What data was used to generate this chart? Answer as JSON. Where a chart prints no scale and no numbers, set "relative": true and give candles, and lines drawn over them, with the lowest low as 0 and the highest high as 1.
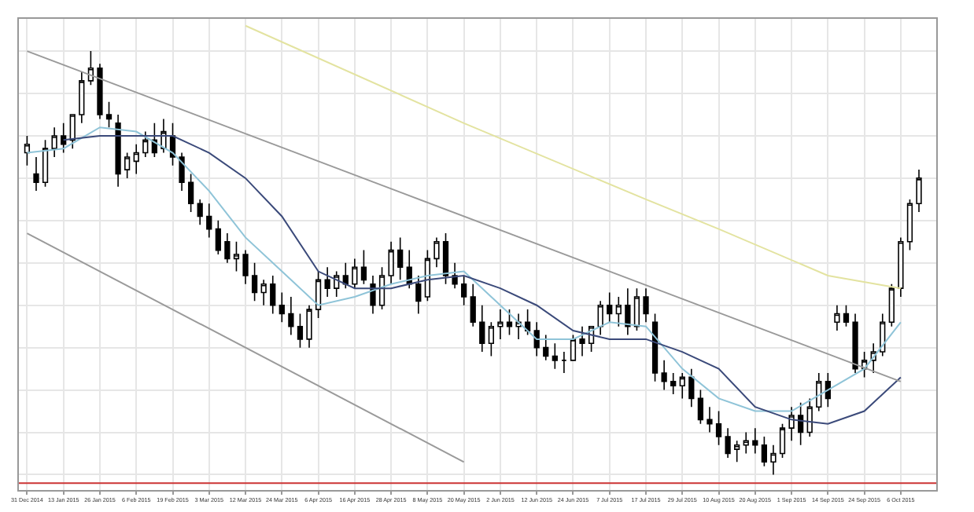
{
  "chart_data": {
    "type": "candlestick",
    "relative": true,
    "color": "#000000",
    "grid": true,
    "tick_labels": "x",
    "categories": [
      "31 Dec 2014",
      null,
      null,
      null,
      "13 Jan 2015",
      null,
      null,
      null,
      "26 Jan 2015",
      null,
      null,
      null,
      "6 Feb 2015",
      null,
      null,
      null,
      "19 Feb 2015",
      null,
      null,
      null,
      "3 Mar 2015",
      null,
      null,
      null,
      "12 Mar 2015",
      null,
      null,
      null,
      "24 Mar 2015",
      null,
      null,
      null,
      "6 Apr 2015",
      null,
      null,
      null,
      "16 Apr 2015",
      null,
      null,
      null,
      "28 Apr 2015",
      null,
      null,
      null,
      "8 May 2015",
      null,
      null,
      null,
      "20 May 2015",
      null,
      null,
      null,
      "2 Jun 2015",
      null,
      null,
      null,
      "12 Jun 2015",
      null,
      null,
      null,
      "24 Jun 2015",
      null,
      null,
      null,
      "7 Jul 2015",
      null,
      null,
      null,
      "17 Jul 2015",
      null,
      null,
      null,
      "29 Jul 2015",
      null,
      null,
      null,
      "10 Aug 2015",
      null,
      null,
      null,
      "20 Aug 2015",
      null,
      null,
      null,
      "1 Sep 2015",
      null,
      null,
      null,
      "14 Sep 2015",
      null,
      null,
      null,
      "24 Sep 2015",
      null,
      null,
      null,
      "6 Oct 2015",
      null,
      null
    ],
    "ohlc": [
      [
        0.76,
        0.8,
        0.73,
        0.78
      ],
      [
        0.71,
        0.75,
        0.67,
        0.69
      ],
      [
        0.69,
        0.79,
        0.68,
        0.77
      ],
      [
        0.77,
        0.82,
        0.75,
        0.8
      ],
      [
        0.8,
        0.83,
        0.76,
        0.78
      ],
      [
        0.79,
        0.85,
        0.77,
        0.85
      ],
      [
        0.85,
        0.95,
        0.83,
        0.93
      ],
      [
        0.93,
        1.0,
        0.92,
        0.96
      ],
      [
        0.96,
        0.97,
        0.84,
        0.85
      ],
      [
        0.85,
        0.88,
        0.82,
        0.84
      ],
      [
        0.83,
        0.85,
        0.68,
        0.71
      ],
      [
        0.72,
        0.76,
        0.7,
        0.75
      ],
      [
        0.74,
        0.78,
        0.71,
        0.76
      ],
      [
        0.76,
        0.81,
        0.75,
        0.79
      ],
      [
        0.79,
        0.83,
        0.75,
        0.76
      ],
      [
        0.77,
        0.84,
        0.76,
        0.81
      ],
      [
        0.8,
        0.83,
        0.73,
        0.75
      ],
      [
        0.75,
        0.76,
        0.67,
        0.69
      ],
      [
        0.69,
        0.71,
        0.62,
        0.64
      ],
      [
        0.64,
        0.65,
        0.59,
        0.61
      ],
      [
        0.61,
        0.64,
        0.56,
        0.58
      ],
      [
        0.58,
        0.6,
        0.52,
        0.53
      ],
      [
        0.55,
        0.57,
        0.5,
        0.51
      ],
      [
        0.51,
        0.55,
        0.48,
        0.52
      ],
      [
        0.52,
        0.53,
        0.45,
        0.47
      ],
      [
        0.47,
        0.5,
        0.41,
        0.43
      ],
      [
        0.43,
        0.46,
        0.4,
        0.45
      ],
      [
        0.45,
        0.47,
        0.38,
        0.4
      ],
      [
        0.4,
        0.43,
        0.36,
        0.38
      ],
      [
        0.38,
        0.42,
        0.33,
        0.35
      ],
      [
        0.35,
        0.38,
        0.3,
        0.32
      ],
      [
        0.32,
        0.4,
        0.3,
        0.39
      ],
      [
        0.39,
        0.48,
        0.37,
        0.46
      ],
      [
        0.46,
        0.49,
        0.42,
        0.44
      ],
      [
        0.44,
        0.48,
        0.42,
        0.47
      ],
      [
        0.47,
        0.5,
        0.44,
        0.45
      ],
      [
        0.45,
        0.51,
        0.44,
        0.49
      ],
      [
        0.49,
        0.53,
        0.45,
        0.46
      ],
      [
        0.45,
        0.47,
        0.38,
        0.4
      ],
      [
        0.4,
        0.49,
        0.39,
        0.47
      ],
      [
        0.47,
        0.55,
        0.45,
        0.53
      ],
      [
        0.53,
        0.56,
        0.46,
        0.49
      ],
      [
        0.49,
        0.53,
        0.44,
        0.45
      ],
      [
        0.45,
        0.47,
        0.38,
        0.41
      ],
      [
        0.42,
        0.53,
        0.41,
        0.51
      ],
      [
        0.51,
        0.56,
        0.49,
        0.55
      ],
      [
        0.55,
        0.57,
        0.45,
        0.47
      ],
      [
        0.47,
        0.5,
        0.44,
        0.45
      ],
      [
        0.45,
        0.47,
        0.4,
        0.42
      ],
      [
        0.42,
        0.45,
        0.35,
        0.36
      ],
      [
        0.36,
        0.4,
        0.29,
        0.31
      ],
      [
        0.31,
        0.36,
        0.28,
        0.35
      ],
      [
        0.35,
        0.39,
        0.32,
        0.36
      ],
      [
        0.36,
        0.39,
        0.33,
        0.35
      ],
      [
        0.35,
        0.38,
        0.32,
        0.36
      ],
      [
        0.36,
        0.39,
        0.33,
        0.34
      ],
      [
        0.34,
        0.36,
        0.28,
        0.3
      ],
      [
        0.3,
        0.33,
        0.27,
        0.28
      ],
      [
        0.28,
        0.31,
        0.25,
        0.27
      ],
      [
        0.27,
        0.29,
        0.24,
        0.27
      ],
      [
        0.27,
        0.33,
        0.27,
        0.32
      ],
      [
        0.32,
        0.35,
        0.28,
        0.31
      ],
      [
        0.31,
        0.35,
        0.29,
        0.35
      ],
      [
        0.35,
        0.41,
        0.33,
        0.4
      ],
      [
        0.4,
        0.43,
        0.36,
        0.38
      ],
      [
        0.38,
        0.42,
        0.35,
        0.4
      ],
      [
        0.4,
        0.44,
        0.33,
        0.35
      ],
      [
        0.35,
        0.44,
        0.34,
        0.42
      ],
      [
        0.42,
        0.44,
        0.36,
        0.38
      ],
      [
        0.36,
        0.38,
        0.22,
        0.24
      ],
      [
        0.24,
        0.27,
        0.2,
        0.22
      ],
      [
        0.22,
        0.24,
        0.19,
        0.21
      ],
      [
        0.21,
        0.24,
        0.18,
        0.23
      ],
      [
        0.23,
        0.25,
        0.16,
        0.18
      ],
      [
        0.18,
        0.2,
        0.12,
        0.13
      ],
      [
        0.13,
        0.16,
        0.1,
        0.12
      ],
      [
        0.12,
        0.15,
        0.07,
        0.09
      ],
      [
        0.09,
        0.11,
        0.04,
        0.05
      ],
      [
        0.06,
        0.08,
        0.03,
        0.07
      ],
      [
        0.07,
        0.1,
        0.05,
        0.08
      ],
      [
        0.08,
        0.11,
        0.05,
        0.07
      ],
      [
        0.07,
        0.09,
        0.02,
        0.03
      ],
      [
        0.03,
        0.07,
        0.0,
        0.05
      ],
      [
        0.05,
        0.12,
        0.04,
        0.11
      ],
      [
        0.11,
        0.16,
        0.08,
        0.14
      ],
      [
        0.14,
        0.17,
        0.07,
        0.1
      ],
      [
        0.1,
        0.18,
        0.09,
        0.16
      ],
      [
        0.16,
        0.24,
        0.15,
        0.22
      ],
      [
        0.22,
        0.24,
        0.16,
        0.18
      ],
      [
        0.36,
        0.4,
        0.34,
        0.38
      ],
      [
        0.38,
        0.4,
        0.35,
        0.36
      ],
      [
        0.36,
        0.38,
        0.24,
        0.25
      ],
      [
        0.25,
        0.29,
        0.23,
        0.27
      ],
      [
        0.27,
        0.31,
        0.24,
        0.29
      ],
      [
        0.29,
        0.38,
        0.28,
        0.36
      ],
      [
        0.36,
        0.45,
        0.35,
        0.44
      ],
      [
        0.44,
        0.56,
        0.42,
        0.55
      ],
      [
        0.55,
        0.65,
        0.53,
        0.64
      ],
      [
        0.64,
        0.72,
        0.62,
        0.7
      ]
    ],
    "series": [
      {
        "type": "line",
        "color": "#8fc4d8",
        "x": [
          "31 Dec 2014",
          "13 Jan 2015",
          "26 Jan 2015",
          "6 Feb 2015",
          "19 Feb 2015",
          "3 Mar 2015",
          "12 Mar 2015",
          "24 Mar 2015",
          "6 Apr 2015",
          "16 Apr 2015",
          "28 Apr 2015",
          "8 May 2015",
          "20 May 2015",
          "2 Jun 2015",
          "12 Jun 2015",
          "24 Jun 2015",
          "7 Jul 2015",
          "17 Jul 2015",
          "29 Jul 2015",
          "10 Aug 2015",
          "20 Aug 2015",
          "1 Sep 2015",
          "14 Sep 2015",
          "24 Sep 2015",
          "6 Oct 2015"
        ],
        "values": [
          0.76,
          0.77,
          0.82,
          0.81,
          0.76,
          0.67,
          0.56,
          0.48,
          0.4,
          0.42,
          0.45,
          0.47,
          0.48,
          0.4,
          0.32,
          0.32,
          0.36,
          0.35,
          0.25,
          0.18,
          0.15,
          0.15,
          0.2,
          0.25,
          0.36
        ]
      },
      {
        "type": "line",
        "color": "#3b4a7a",
        "x": [
          "13 Jan 2015",
          "26 Jan 2015",
          "6 Feb 2015",
          "19 Feb 2015",
          "3 Mar 2015",
          "12 Mar 2015",
          "24 Mar 2015",
          "6 Apr 2015",
          "16 Apr 2015",
          "28 Apr 2015",
          "8 May 2015",
          "20 May 2015",
          "2 Jun 2015",
          "12 Jun 2015",
          "24 Jun 2015",
          "7 Jul 2015",
          "17 Jul 2015",
          "29 Jul 2015",
          "10 Aug 2015",
          "20 Aug 2015",
          "1 Sep 2015",
          "14 Sep 2015",
          "24 Sep 2015",
          "6 Oct 2015"
        ],
        "values": [
          0.79,
          0.8,
          0.8,
          0.8,
          0.76,
          0.7,
          0.61,
          0.48,
          0.44,
          0.44,
          0.46,
          0.47,
          0.44,
          0.4,
          0.34,
          0.32,
          0.32,
          0.29,
          0.25,
          0.16,
          0.13,
          0.12,
          0.15,
          0.23
        ]
      },
      {
        "type": "line",
        "color": "#e3e3a0",
        "x": [
          "12 Mar 2015",
          "20 May 2015",
          "17 Jul 2015",
          "10 Aug 2015",
          "14 Sep 2015",
          "6 Oct 2015"
        ],
        "values": [
          1.06,
          0.83,
          0.65,
          0.58,
          0.47,
          0.44
        ]
      },
      {
        "type": "line",
        "color": "#9a9a9a",
        "x": [
          "31 Dec 2014",
          "6 Oct 2015"
        ],
        "values": [
          1.0,
          0.22
        ]
      },
      {
        "type": "line",
        "color": "#9a9a9a",
        "x": [
          "31 Dec 2014",
          "20 May 2015"
        ],
        "values": [
          0.57,
          0.03
        ]
      }
    ],
    "ref_lines": [
      {
        "axis": "y",
        "value": -0.02,
        "color": "#cc3333"
      }
    ]
  }
}
